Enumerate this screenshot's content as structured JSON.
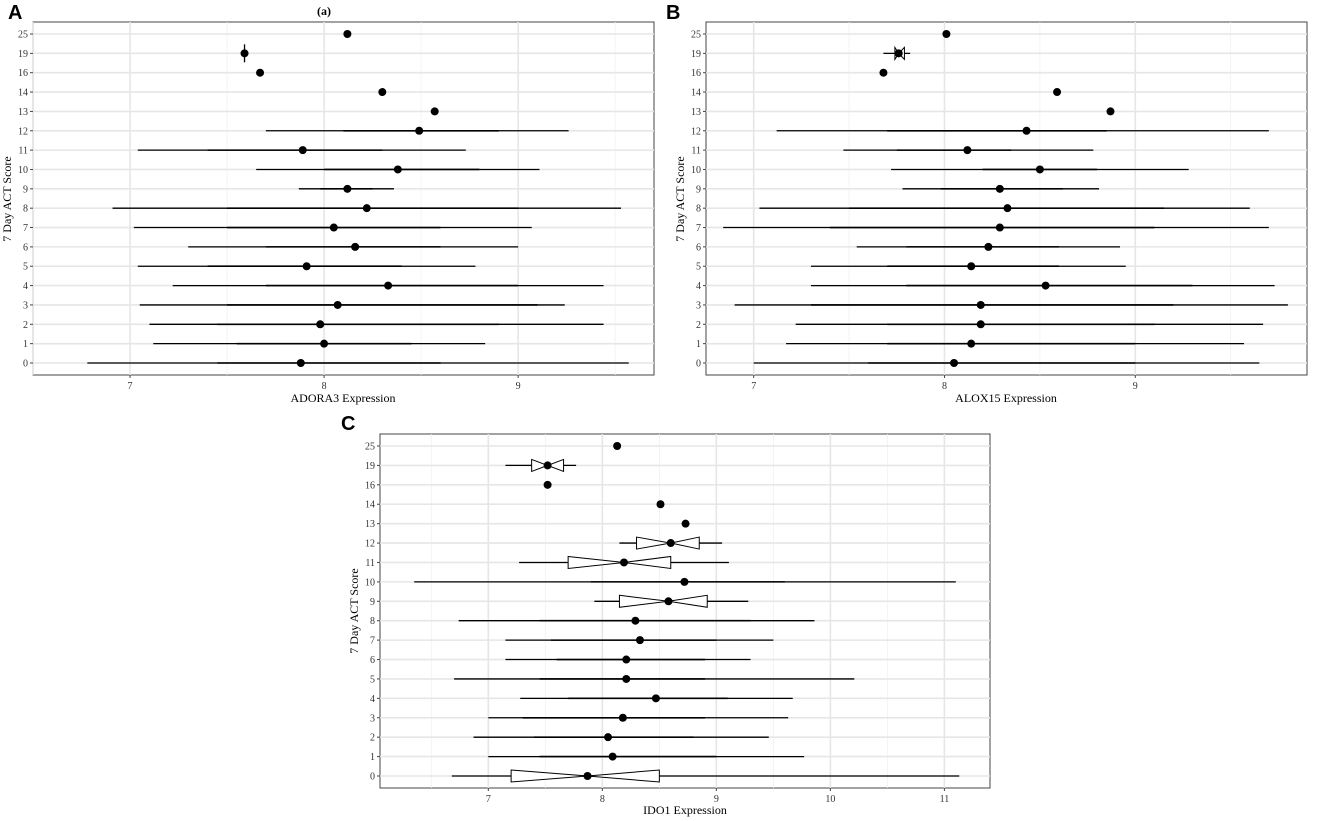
{
  "figure": {
    "panels": [
      "A",
      "B",
      "C"
    ],
    "subtitle_a": "(a)"
  },
  "chart_data": [
    {
      "panel": "A",
      "type": "boxplot-horizontal",
      "title": "(a)",
      "xlabel": "ADORA3 Expression",
      "ylabel": "7 Day ACT Score",
      "xlim": [
        6.5,
        9.7
      ],
      "xticks": [
        7,
        8,
        9
      ],
      "categories": [
        "0",
        "1",
        "2",
        "3",
        "4",
        "5",
        "6",
        "7",
        "8",
        "9",
        "10",
        "11",
        "12",
        "13",
        "14",
        "16",
        "19",
        "25"
      ],
      "rows": [
        {
          "cat": "0",
          "min": 6.78,
          "q1": 7.45,
          "median": 7.88,
          "q3": 8.6,
          "max": 9.57
        },
        {
          "cat": "1",
          "min": 7.12,
          "q1": 7.55,
          "median": 8.0,
          "q3": 8.45,
          "max": 8.83
        },
        {
          "cat": "2",
          "min": 7.1,
          "q1": 7.45,
          "median": 7.98,
          "q3": 8.9,
          "max": 9.44
        },
        {
          "cat": "3",
          "min": 7.05,
          "q1": 7.5,
          "median": 8.07,
          "q3": 9.1,
          "max": 9.24
        },
        {
          "cat": "4",
          "min": 7.22,
          "q1": 7.7,
          "median": 8.33,
          "q3": 9.0,
          "max": 9.44
        },
        {
          "cat": "5",
          "min": 7.04,
          "q1": 7.4,
          "median": 7.91,
          "q3": 8.4,
          "max": 8.78
        },
        {
          "cat": "6",
          "min": 7.3,
          "q1": 7.7,
          "median": 8.16,
          "q3": 8.6,
          "max": 9.0
        },
        {
          "cat": "7",
          "min": 7.02,
          "q1": 7.5,
          "median": 8.05,
          "q3": 8.6,
          "max": 9.07
        },
        {
          "cat": "8",
          "min": 6.91,
          "q1": 7.5,
          "median": 8.22,
          "q3": 9.0,
          "max": 9.53
        },
        {
          "cat": "9",
          "min": 7.87,
          "q1": 7.98,
          "median": 8.12,
          "q3": 8.25,
          "max": 8.36
        },
        {
          "cat": "10",
          "min": 7.65,
          "q1": 8.0,
          "median": 8.38,
          "q3": 8.8,
          "max": 9.11
        },
        {
          "cat": "11",
          "min": 7.04,
          "q1": 7.4,
          "median": 7.89,
          "q3": 8.3,
          "max": 8.73
        },
        {
          "cat": "12",
          "min": 7.7,
          "q1": 8.1,
          "median": 8.49,
          "q3": 8.9,
          "max": 9.26
        },
        {
          "cat": "13",
          "median": 8.57
        },
        {
          "cat": "14",
          "median": 8.3
        },
        {
          "cat": "16",
          "median": 7.67
        },
        {
          "cat": "19",
          "median": 7.59,
          "vline": true
        },
        {
          "cat": "25",
          "median": 8.12
        }
      ]
    },
    {
      "panel": "B",
      "type": "boxplot-horizontal",
      "xlabel": "ALOX15 Expression",
      "ylabel": "7 Day ACT Score",
      "xlim": [
        6.75,
        9.9
      ],
      "xticks": [
        7,
        8,
        9
      ],
      "categories": [
        "0",
        "1",
        "2",
        "3",
        "4",
        "5",
        "6",
        "7",
        "8",
        "9",
        "10",
        "11",
        "12",
        "13",
        "14",
        "16",
        "19",
        "25"
      ],
      "rows": [
        {
          "cat": "0",
          "min": 7.0,
          "q1": 7.6,
          "median": 8.05,
          "q3": 9.0,
          "max": 9.65
        },
        {
          "cat": "1",
          "min": 7.17,
          "q1": 7.7,
          "median": 8.14,
          "q3": 9.0,
          "max": 9.57
        },
        {
          "cat": "2",
          "min": 7.22,
          "q1": 7.7,
          "median": 8.19,
          "q3": 9.1,
          "max": 9.67
        },
        {
          "cat": "3",
          "min": 6.9,
          "q1": 7.3,
          "median": 8.19,
          "q3": 9.2,
          "max": 9.8
        },
        {
          "cat": "4",
          "min": 7.3,
          "q1": 7.8,
          "median": 8.53,
          "q3": 9.3,
          "max": 9.73
        },
        {
          "cat": "5",
          "min": 7.3,
          "q1": 7.7,
          "median": 8.14,
          "q3": 8.6,
          "max": 8.95
        },
        {
          "cat": "6",
          "min": 7.54,
          "q1": 7.8,
          "median": 8.23,
          "q3": 8.6,
          "max": 8.92
        },
        {
          "cat": "7",
          "min": 6.84,
          "q1": 7.4,
          "median": 8.29,
          "q3": 9.1,
          "max": 9.7
        },
        {
          "cat": "8",
          "min": 7.03,
          "q1": 7.5,
          "median": 8.33,
          "q3": 9.15,
          "max": 9.6
        },
        {
          "cat": "9",
          "min": 7.78,
          "q1": 7.98,
          "median": 8.29,
          "q3": 8.62,
          "max": 8.81
        },
        {
          "cat": "10",
          "min": 7.72,
          "q1": 8.2,
          "median": 8.5,
          "q3": 8.8,
          "max": 9.28
        },
        {
          "cat": "11",
          "min": 7.47,
          "q1": 7.75,
          "median": 8.12,
          "q3": 8.35,
          "max": 8.78
        },
        {
          "cat": "12",
          "min": 7.12,
          "q1": 7.7,
          "median": 8.43,
          "q3": 8.85,
          "max": 9.7
        },
        {
          "cat": "13",
          "median": 8.87
        },
        {
          "cat": "14",
          "median": 8.59
        },
        {
          "cat": "16",
          "median": 7.68
        },
        {
          "cat": "19",
          "min": 7.68,
          "q1": 7.74,
          "median": 7.76,
          "q3": 7.79,
          "max": 7.82,
          "notched": true
        },
        {
          "cat": "25",
          "median": 8.01
        }
      ]
    },
    {
      "panel": "C",
      "type": "boxplot-horizontal",
      "xlabel": "IDO1 Expression",
      "ylabel": "7 Day ACT Score",
      "xlim": [
        6.05,
        11.4
      ],
      "xticks": [
        7,
        8,
        9,
        10,
        11
      ],
      "categories": [
        "0",
        "1",
        "2",
        "3",
        "4",
        "5",
        "6",
        "7",
        "8",
        "9",
        "10",
        "11",
        "12",
        "13",
        "14",
        "16",
        "19",
        "25"
      ],
      "rows": [
        {
          "cat": "0",
          "min": 6.68,
          "q1": 7.2,
          "median": 7.87,
          "q3": 8.5,
          "max": 11.13,
          "notched": true
        },
        {
          "cat": "1",
          "min": 7.0,
          "q1": 7.45,
          "median": 8.09,
          "q3": 9.0,
          "max": 9.77
        },
        {
          "cat": "2",
          "min": 6.87,
          "q1": 7.4,
          "median": 8.05,
          "q3": 8.8,
          "max": 9.46
        },
        {
          "cat": "3",
          "min": 7.0,
          "q1": 7.3,
          "median": 8.18,
          "q3": 8.9,
          "max": 9.63
        },
        {
          "cat": "4",
          "min": 7.28,
          "q1": 7.7,
          "median": 8.47,
          "q3": 9.1,
          "max": 9.67
        },
        {
          "cat": "5",
          "min": 6.7,
          "q1": 7.45,
          "median": 8.21,
          "q3": 8.9,
          "max": 10.21
        },
        {
          "cat": "6",
          "min": 7.15,
          "q1": 7.6,
          "median": 8.21,
          "q3": 8.9,
          "max": 9.3
        },
        {
          "cat": "7",
          "min": 7.15,
          "q1": 7.55,
          "median": 8.33,
          "q3": 9.0,
          "max": 9.5
        },
        {
          "cat": "8",
          "min": 6.74,
          "q1": 7.45,
          "median": 8.29,
          "q3": 9.3,
          "max": 9.86
        },
        {
          "cat": "9",
          "min": 7.93,
          "q1": 8.15,
          "median": 8.58,
          "q3": 8.92,
          "max": 9.28,
          "notched": true
        },
        {
          "cat": "10",
          "min": 6.35,
          "q1": 7.9,
          "median": 8.72,
          "q3": 9.6,
          "max": 11.1
        },
        {
          "cat": "11",
          "min": 7.27,
          "q1": 7.7,
          "median": 8.19,
          "q3": 8.6,
          "max": 9.11,
          "notched": true
        },
        {
          "cat": "12",
          "min": 8.15,
          "q1": 8.3,
          "median": 8.6,
          "q3": 8.85,
          "max": 9.05,
          "notched": true
        },
        {
          "cat": "13",
          "median": 8.73
        },
        {
          "cat": "14",
          "median": 8.51
        },
        {
          "cat": "16",
          "median": 7.52
        },
        {
          "cat": "19",
          "min": 7.15,
          "q1": 7.38,
          "median": 7.52,
          "q3": 7.66,
          "max": 7.77,
          "notched": true
        },
        {
          "cat": "25",
          "median": 8.13
        }
      ]
    }
  ]
}
